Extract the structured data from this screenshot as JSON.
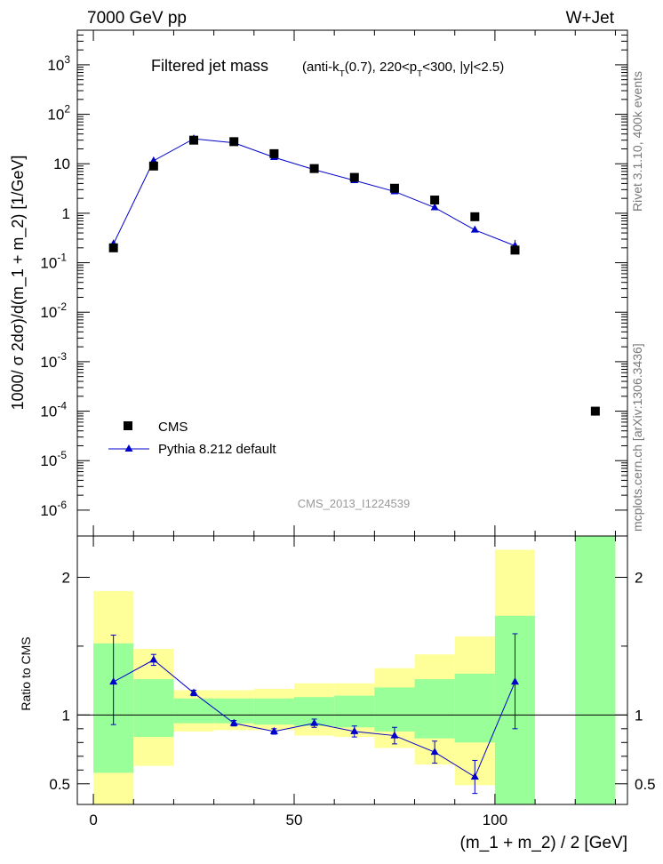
{
  "header": {
    "left": "7000 GeV pp",
    "right": "W+Jet"
  },
  "main_panel": {
    "title": "Filtered jet mass",
    "subtitle_parts": [
      "(anti-k",
      "T",
      "(0.7), 220<p",
      "T",
      "<300, |y|<2.5)"
    ],
    "ylabel": "1000/ σ 2dσ)/d(m_1 + m_2) [1/GeV]",
    "watermark": "CMS_2013_I1224539",
    "legend": {
      "data_label": "CMS",
      "mc_label": "Pythia 8.212 default"
    }
  },
  "ratio_panel": {
    "ylabel": "Ratio to CMS",
    "xlabel": "(m_1 + m_2) / 2 [GeV]"
  },
  "side_text": {
    "rivet": "Rivet 3.1.10,  400k events",
    "mcplots": "mcplots.cern.ch [arXiv:1306.3436]"
  },
  "colors": {
    "data": "#000000",
    "mc": "#0000cc",
    "band_outer": "#ffff99",
    "band_inner": "#99ff99"
  },
  "chart_data": [
    {
      "type": "scatter",
      "panel": "main",
      "ylog": true,
      "xlim": [
        -4,
        133
      ],
      "ylim": [
        3e-07,
        5000
      ],
      "yticks": [
        {
          "v": 1e-06,
          "m": "10",
          "e": "-6"
        },
        {
          "v": 1e-05,
          "m": "10",
          "e": "-5"
        },
        {
          "v": 0.0001,
          "m": "10",
          "e": "-4"
        },
        {
          "v": 0.001,
          "m": "10",
          "e": "-3"
        },
        {
          "v": 0.01,
          "m": "10",
          "e": "-2"
        },
        {
          "v": 0.1,
          "m": "10",
          "e": "-1"
        },
        {
          "v": 1,
          "m": "1",
          "e": ""
        },
        {
          "v": 10,
          "m": "10",
          "e": ""
        },
        {
          "v": 100,
          "m": "10",
          "e": "2"
        },
        {
          "v": 1000,
          "m": "10",
          "e": "3"
        }
      ],
      "series": [
        {
          "name": "CMS",
          "x": [
            5,
            15,
            25,
            35,
            45,
            55,
            65,
            75,
            85,
            95,
            105,
            125
          ],
          "y": [
            0.2,
            9.0,
            30.0,
            28.0,
            16.0,
            8.0,
            5.3,
            3.2,
            1.85,
            0.85,
            0.18,
            0.0001
          ]
        },
        {
          "name": "Pythia 8.212 default",
          "x": [
            5,
            15,
            25,
            35,
            45,
            55,
            65,
            75,
            85,
            95,
            105
          ],
          "y": [
            0.24,
            11.5,
            32.0,
            26.5,
            13.5,
            7.6,
            4.6,
            2.75,
            1.3,
            0.46,
            0.22
          ],
          "yerr_low": [
            0.05,
            0.3,
            0.5,
            0.4,
            0.3,
            0.2,
            0.15,
            0.1,
            0.06,
            0.05,
            0.05
          ],
          "yerr_high": [
            0.05,
            0.3,
            0.5,
            0.4,
            0.3,
            0.2,
            0.15,
            0.1,
            0.06,
            0.05,
            0.07
          ]
        }
      ]
    },
    {
      "type": "line",
      "panel": "ratio",
      "xlim": [
        -4,
        133
      ],
      "ylim": [
        0.35,
        2.3
      ],
      "xticks": [
        0,
        50,
        100
      ],
      "yticks": [
        0.5,
        1,
        2
      ],
      "reference_line": 1,
      "bands": [
        {
          "x0": 0,
          "x1": 10,
          "outer": [
            0.35,
            1.9
          ],
          "inner": [
            0.58,
            1.52
          ]
        },
        {
          "x0": 10,
          "x1": 20,
          "outer": [
            0.63,
            1.48
          ],
          "inner": [
            0.84,
            1.26
          ]
        },
        {
          "x0": 20,
          "x1": 30,
          "outer": [
            0.88,
            1.18
          ],
          "inner": [
            0.94,
            1.12
          ]
        },
        {
          "x0": 30,
          "x1": 40,
          "outer": [
            0.89,
            1.18
          ],
          "inner": [
            0.94,
            1.12
          ]
        },
        {
          "x0": 40,
          "x1": 50,
          "outer": [
            0.89,
            1.19
          ],
          "inner": [
            0.93,
            1.12
          ]
        },
        {
          "x0": 50,
          "x1": 60,
          "outer": [
            0.85,
            1.23
          ],
          "inner": [
            0.92,
            1.13
          ]
        },
        {
          "x0": 60,
          "x1": 70,
          "outer": [
            0.84,
            1.23
          ],
          "inner": [
            0.91,
            1.14
          ]
        },
        {
          "x0": 70,
          "x1": 80,
          "outer": [
            0.76,
            1.34
          ],
          "inner": [
            0.88,
            1.2
          ]
        },
        {
          "x0": 80,
          "x1": 90,
          "outer": [
            0.64,
            1.44
          ],
          "inner": [
            0.83,
            1.26
          ]
        },
        {
          "x0": 90,
          "x1": 100,
          "outer": [
            0.49,
            1.57
          ],
          "inner": [
            0.8,
            1.3
          ]
        },
        {
          "x0": 100,
          "x1": 110,
          "outer": [
            0.35,
            2.2
          ],
          "inner": [
            0.35,
            1.72
          ]
        },
        {
          "x0": 120,
          "x1": 130,
          "outer": [
            0.35,
            2.3
          ],
          "inner": [
            0.35,
            2.3
          ]
        }
      ],
      "series": [
        {
          "name": "Pythia 8.212 default",
          "x": [
            5,
            15,
            25,
            35,
            45,
            55,
            65,
            75,
            85,
            95,
            105
          ],
          "y": [
            1.24,
            1.4,
            1.16,
            0.94,
            0.88,
            0.94,
            0.88,
            0.85,
            0.73,
            0.55,
            1.24
          ],
          "yerr_low": [
            0.31,
            0.04,
            0.02,
            0.02,
            0.02,
            0.03,
            0.04,
            0.06,
            0.08,
            0.12,
            0.34
          ],
          "yerr_high": [
            0.34,
            0.04,
            0.02,
            0.02,
            0.02,
            0.03,
            0.04,
            0.06,
            0.08,
            0.12,
            0.35
          ]
        }
      ]
    }
  ]
}
